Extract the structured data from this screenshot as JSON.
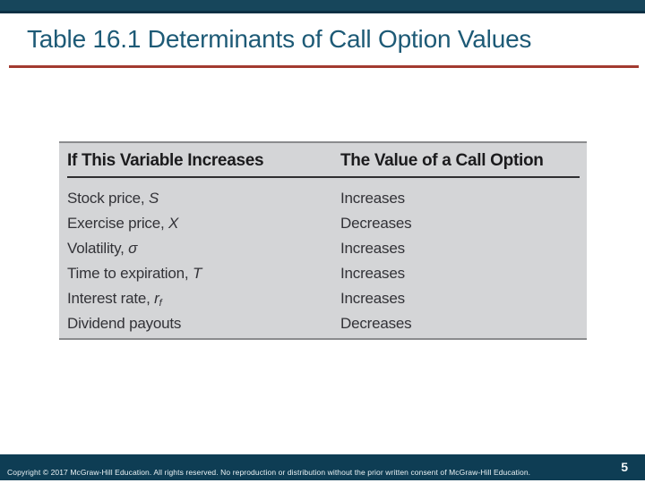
{
  "slide": {
    "title": "Table 16.1 Determinants of Call Option Values",
    "page_number": "5",
    "copyright": "Copyright © 2017 McGraw-Hill Education. All rights reserved. No reproduction or distribution without the prior written consent of McGraw-Hill Education."
  },
  "colors": {
    "top_bar": "#17465B",
    "top_bar_edge": "#0C3044",
    "title_text": "#1D5A76",
    "accent_rule": "#A23A30",
    "table_background": "#D4D5D7",
    "table_text": "#323237",
    "footer_bar": "#0E3D54",
    "footer_text": "#EAF2F5"
  },
  "table": {
    "headers": [
      "If This Variable Increases",
      "The Value of a Call Option"
    ],
    "rows": [
      {
        "variable": "Stock price, ",
        "symbol": "S",
        "symbol_sub": "",
        "effect": "Increases"
      },
      {
        "variable": "Exercise price, ",
        "symbol": "X",
        "symbol_sub": "",
        "effect": "Decreases"
      },
      {
        "variable": "Volatility, ",
        "symbol": "σ",
        "symbol_sub": "",
        "effect": "Increases"
      },
      {
        "variable": "Time to expiration, ",
        "symbol": "T",
        "symbol_sub": "",
        "effect": "Increases"
      },
      {
        "variable": "Interest rate, ",
        "symbol": "r",
        "symbol_sub": "f",
        "effect": "Increases"
      },
      {
        "variable": "Dividend payouts",
        "symbol": "",
        "symbol_sub": "",
        "effect": "Decreases"
      }
    ]
  }
}
